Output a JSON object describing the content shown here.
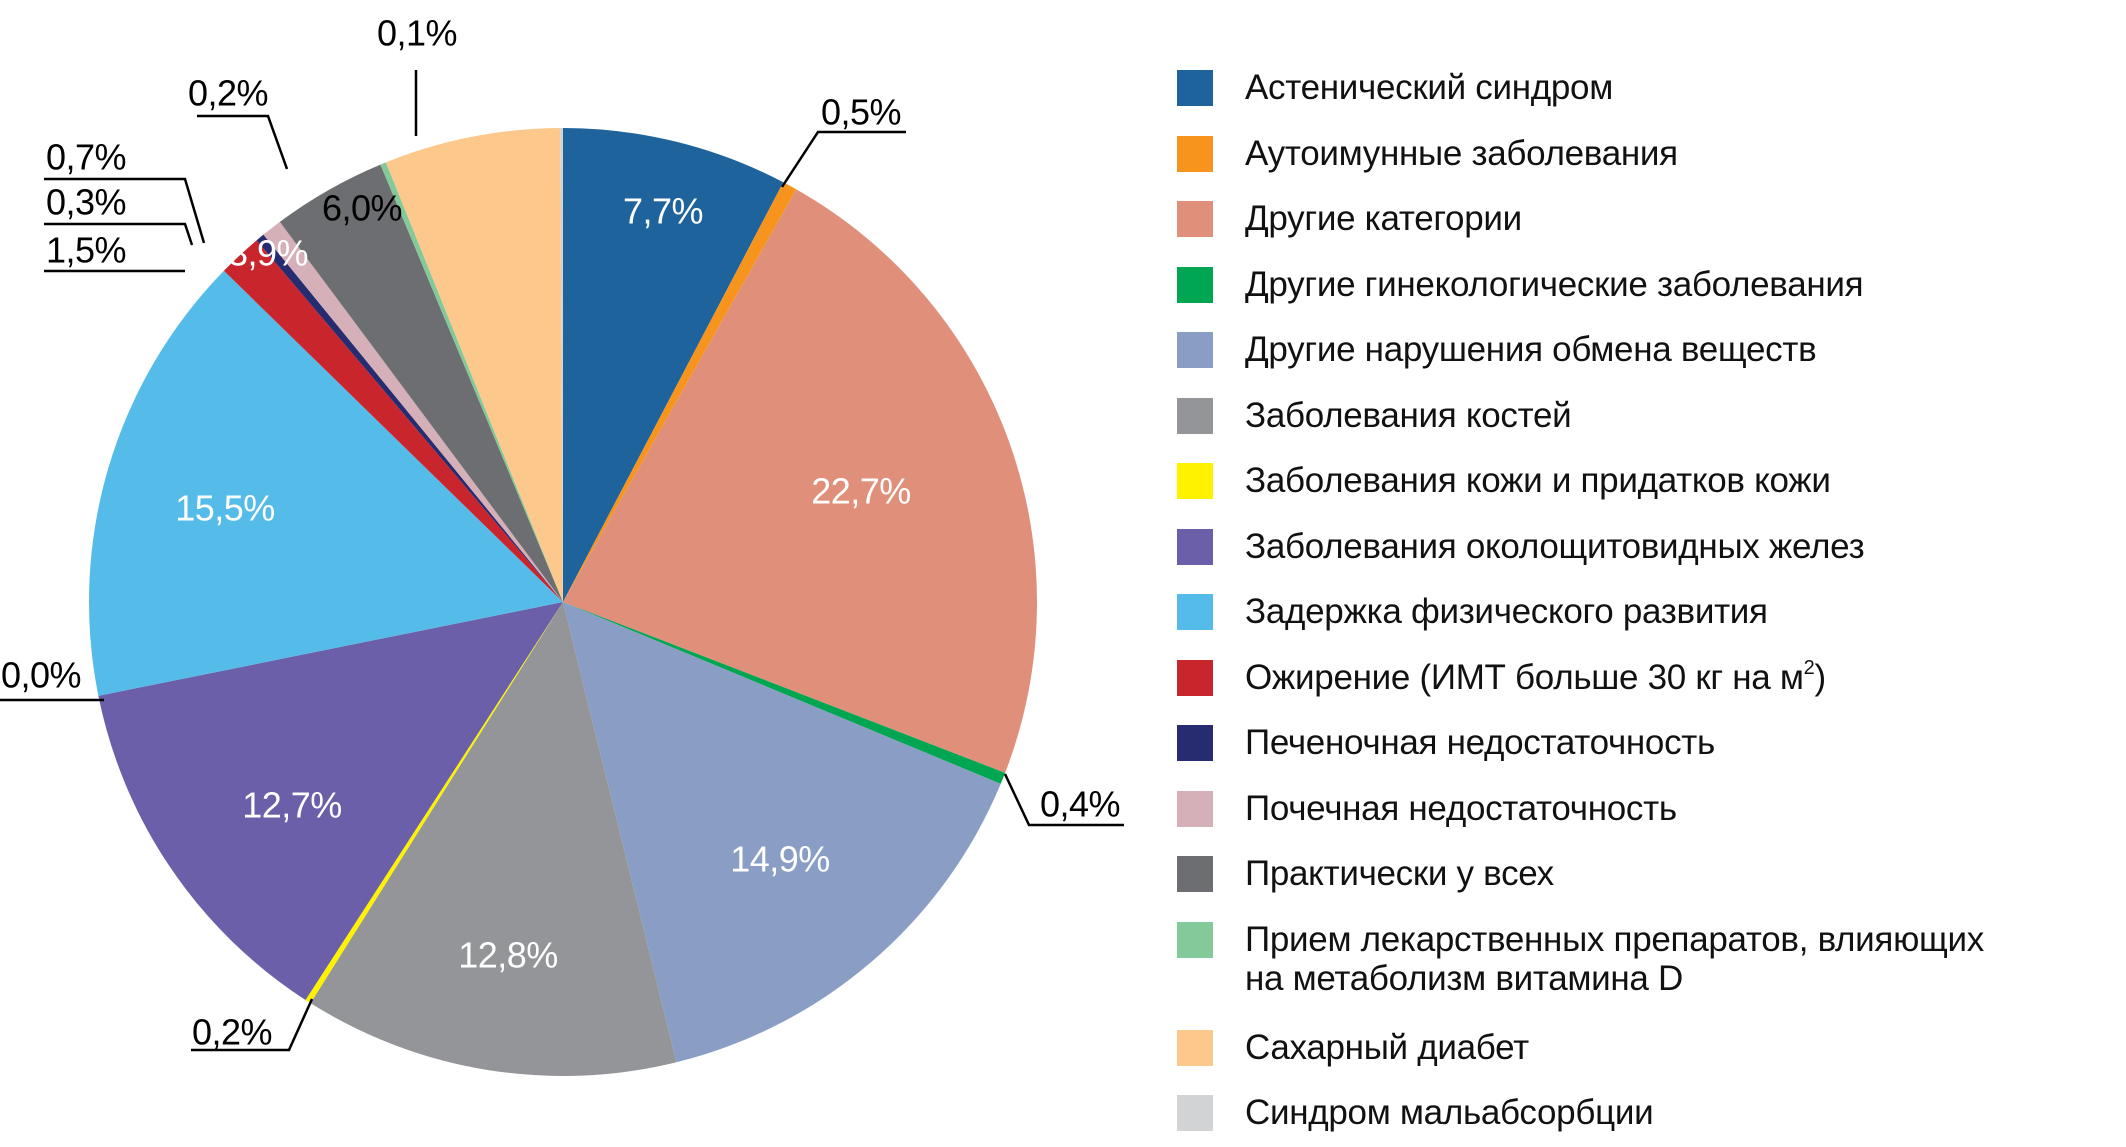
{
  "chart_data": {
    "type": "pie",
    "title": "",
    "start": "top, clockwise",
    "slices": [
      {
        "name": "Астенический синдром",
        "value": 7.7,
        "label": "7,7%",
        "color": "#1f639c"
      },
      {
        "name": "Аутоимунные заболевания",
        "value": 0.5,
        "label": "0,5%",
        "color": "#f7941d"
      },
      {
        "name": "Другие категории",
        "value": 22.7,
        "label": "22,7%",
        "color": "#e0907a"
      },
      {
        "name": "Другие гинекологические заболевания",
        "value": 0.4,
        "label": "0,4%",
        "color": "#00a651"
      },
      {
        "name": "Другие нарушения обмена веществ",
        "value": 14.9,
        "label": "14,9%",
        "color": "#8a9ec5"
      },
      {
        "name": "Заболевания костей",
        "value": 12.8,
        "label": "12,8%",
        "color": "#939598"
      },
      {
        "name": "Заболевания кожи и придатков кожи",
        "value": 0.2,
        "label": "0,2%",
        "color": "#fff200"
      },
      {
        "name": "Заболевания околощитовидных желез",
        "value": 12.7,
        "label": "12,7%",
        "color": "#6a5fa8"
      },
      {
        "name": "",
        "value": 0.0,
        "label": "0,0%",
        "color": "#ffffff"
      },
      {
        "name": "Задержка физического развития",
        "value": 15.5,
        "label": "15,5%",
        "color": "#55bce9"
      },
      {
        "name": "Ожирение (ИМТ больше 30 кг на м²)",
        "value": 1.5,
        "label": "1,5%",
        "color": "#c9252d"
      },
      {
        "name": "Печеночная недостаточность",
        "value": 0.3,
        "label": "0,3%",
        "color": "#262c6f"
      },
      {
        "name": "Почечная недостаточность",
        "value": 0.7,
        "label": "0,7%",
        "color": "#d6b0b9"
      },
      {
        "name": "Практически у всех",
        "value": 3.9,
        "label": "3,9%",
        "color": "#6d6e71"
      },
      {
        "name": "Прием лекарственных препаратов, влияющих на метаболизм витамина D",
        "value": 0.2,
        "label": "0,2%",
        "color": "#84c99a"
      },
      {
        "name": "Сахарный диабет",
        "value": 6.0,
        "label": "6,0%",
        "color": "#fcc88b"
      },
      {
        "name": "Синдром мальабсорбции",
        "value": 0.1,
        "label": "0,1%",
        "color": "#d1d3d4"
      }
    ],
    "legend": {
      "placement": "right",
      "items": [
        {
          "label": "Астенический синдром",
          "color": "#1f639c"
        },
        {
          "label": "Аутоимунные заболевания",
          "color": "#f7941d"
        },
        {
          "label": "Другие категории",
          "color": "#e0907a"
        },
        {
          "label": "Другие гинекологические заболевания",
          "color": "#00a651"
        },
        {
          "label": "Другие нарушения обмена веществ",
          "color": "#8a9ec5"
        },
        {
          "label": "Заболевания костей",
          "color": "#939598"
        },
        {
          "label": "Заболевания кожи и придатков кожи",
          "color": "#fff200"
        },
        {
          "label": "Заболевания околощитовидных желез",
          "color": "#6a5fa8"
        },
        {
          "label": "Задержка физического развития",
          "color": "#55bce9"
        },
        {
          "label": "Ожирение (ИМТ больше 30 кг на м",
          "sup": "2",
          "suffix": ")",
          "color": "#c9252d"
        },
        {
          "label": "Печеночная недостаточность",
          "color": "#262c6f"
        },
        {
          "label": "Почечная недостаточность",
          "color": "#d6b0b9"
        },
        {
          "label": "Практически у всех",
          "color": "#6d6e71"
        },
        {
          "label": "Прием лекарственных препаратов, влияющих",
          "label2": "на метаболизм витамина D",
          "color": "#84c99a"
        },
        {
          "label": "Сахарный диабет",
          "color": "#fcc88b"
        },
        {
          "label": "Синдром мальабсорбции",
          "color": "#d1d3d4"
        }
      ]
    }
  }
}
